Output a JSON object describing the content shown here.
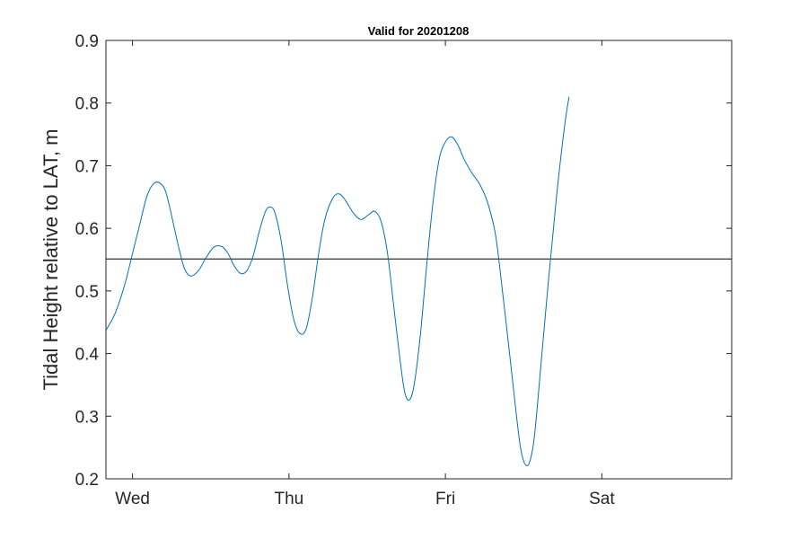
{
  "chart_data": {
    "type": "line",
    "title": "Valid for 20201208",
    "xlabel": "",
    "ylabel": "Tidal Height relative to LAT, m",
    "x_unit": "days",
    "xlim": [
      -0.17,
      3.83
    ],
    "ylim": [
      0.2,
      0.9
    ],
    "yticks": [
      0.2,
      0.3,
      0.4,
      0.5,
      0.6,
      0.7,
      0.8,
      0.9
    ],
    "ytick_labels": [
      "0.2",
      "0.3",
      "0.4",
      "0.5",
      "0.6",
      "0.7",
      "0.8",
      "0.9"
    ],
    "xticks": [
      0,
      1,
      2,
      3
    ],
    "xtick_labels": [
      "Wed",
      "Thu",
      "Fri",
      "Sat"
    ],
    "grid": false,
    "legend": "none",
    "reference_line": {
      "y": 0.551,
      "color": "#000000"
    },
    "series": [
      {
        "color": "#0072BD",
        "points": [
          [
            -0.17,
            0.437
          ],
          [
            -0.11,
            0.465
          ],
          [
            -0.05,
            0.51
          ],
          [
            0.0,
            0.56
          ],
          [
            0.05,
            0.61
          ],
          [
            0.09,
            0.65
          ],
          [
            0.13,
            0.67
          ],
          [
            0.17,
            0.673
          ],
          [
            0.21,
            0.66
          ],
          [
            0.25,
            0.62
          ],
          [
            0.29,
            0.575
          ],
          [
            0.33,
            0.537
          ],
          [
            0.37,
            0.524
          ],
          [
            0.42,
            0.532
          ],
          [
            0.47,
            0.553
          ],
          [
            0.52,
            0.57
          ],
          [
            0.57,
            0.571
          ],
          [
            0.61,
            0.56
          ],
          [
            0.65,
            0.54
          ],
          [
            0.69,
            0.528
          ],
          [
            0.73,
            0.532
          ],
          [
            0.77,
            0.555
          ],
          [
            0.81,
            0.595
          ],
          [
            0.85,
            0.627
          ],
          [
            0.88,
            0.634
          ],
          [
            0.91,
            0.625
          ],
          [
            0.95,
            0.58
          ],
          [
            0.99,
            0.51
          ],
          [
            1.03,
            0.455
          ],
          [
            1.07,
            0.432
          ],
          [
            1.11,
            0.44
          ],
          [
            1.15,
            0.49
          ],
          [
            1.19,
            0.56
          ],
          [
            1.23,
            0.615
          ],
          [
            1.28,
            0.648
          ],
          [
            1.32,
            0.655
          ],
          [
            1.36,
            0.645
          ],
          [
            1.41,
            0.625
          ],
          [
            1.46,
            0.614
          ],
          [
            1.51,
            0.622
          ],
          [
            1.55,
            0.627
          ],
          [
            1.59,
            0.61
          ],
          [
            1.63,
            0.56
          ],
          [
            1.67,
            0.475
          ],
          [
            1.71,
            0.39
          ],
          [
            1.74,
            0.338
          ],
          [
            1.77,
            0.326
          ],
          [
            1.8,
            0.35
          ],
          [
            1.84,
            0.43
          ],
          [
            1.88,
            0.54
          ],
          [
            1.92,
            0.64
          ],
          [
            1.96,
            0.71
          ],
          [
            2.0,
            0.738
          ],
          [
            2.04,
            0.746
          ],
          [
            2.08,
            0.733
          ],
          [
            2.12,
            0.71
          ],
          [
            2.17,
            0.688
          ],
          [
            2.22,
            0.67
          ],
          [
            2.27,
            0.641
          ],
          [
            2.32,
            0.59
          ],
          [
            2.36,
            0.51
          ],
          [
            2.41,
            0.4
          ],
          [
            2.45,
            0.31
          ],
          [
            2.48,
            0.25
          ],
          [
            2.51,
            0.223
          ],
          [
            2.54,
            0.228
          ],
          [
            2.57,
            0.27
          ],
          [
            2.61,
            0.38
          ],
          [
            2.66,
            0.52
          ],
          [
            2.71,
            0.65
          ],
          [
            2.76,
            0.76
          ],
          [
            2.79,
            0.81
          ]
        ]
      }
    ]
  }
}
